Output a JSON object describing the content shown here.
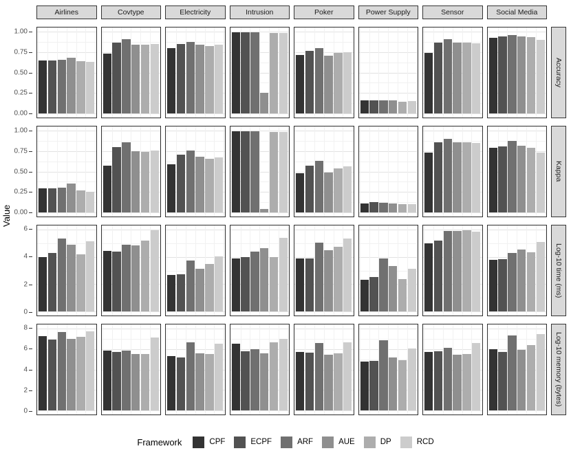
{
  "axes": {
    "y_title": "Value"
  },
  "legend": {
    "title": "Framework"
  },
  "colors": {
    "bar_greys": [
      "#333333",
      "#525252",
      "#707070",
      "#8F8F8F",
      "#ADADAD",
      "#CCCCCC"
    ],
    "strip_background": "#d9d9d9",
    "panel_border": "#2e2e2e",
    "grid_major": "#e2e2e2",
    "grid_minor": "#f1f1f1",
    "tick_text": "#4d4d4d"
  },
  "chart_data": {
    "type": "bar",
    "title": "",
    "xlabel": "",
    "ylabel": "Value",
    "legend_title": "Framework",
    "legend_position": "bottom",
    "grid": "on",
    "series_names": [
      "CPF",
      "ECPF",
      "ARF",
      "AUE",
      "DP",
      "RCD"
    ],
    "facet_columns": [
      "Airlines",
      "Covtype",
      "Electricity",
      "Intrusion",
      "Poker",
      "Power Supply",
      "Sensor",
      "Social Media"
    ],
    "facet_rows": [
      {
        "label": "Accuracy",
        "ticks": [
          1.0,
          0.75,
          0.5,
          0.25,
          0.0
        ],
        "tick_labels": [
          "1.00",
          "0.75",
          "0.50",
          "0.25",
          "0.00"
        ],
        "minor_ticks": [
          0.875,
          0.625,
          0.375,
          0.125
        ],
        "ylim": [
          0,
          1.0
        ],
        "domain": [
          -0.055,
          1.055
        ],
        "values": [
          [
            0.65,
            0.65,
            0.655,
            0.68,
            0.64,
            0.63
          ],
          [
            0.73,
            0.87,
            0.91,
            0.84,
            0.84,
            0.85
          ],
          [
            0.8,
            0.855,
            0.88,
            0.845,
            0.83,
            0.84
          ],
          [
            1.0,
            1.0,
            1.0,
            0.25,
            0.99,
            0.99
          ],
          [
            0.715,
            0.765,
            0.8,
            0.71,
            0.74,
            0.75
          ],
          [
            0.16,
            0.16,
            0.155,
            0.155,
            0.14,
            0.145
          ],
          [
            0.74,
            0.87,
            0.91,
            0.865,
            0.87,
            0.86
          ],
          [
            0.93,
            0.945,
            0.965,
            0.945,
            0.935,
            0.905
          ]
        ]
      },
      {
        "label": "Kappa",
        "ticks": [
          1.0,
          0.75,
          0.5,
          0.25,
          0.0
        ],
        "tick_labels": [
          "1.00",
          "0.75",
          "0.50",
          "0.25",
          "0.00"
        ],
        "minor_ticks": [
          0.875,
          0.625,
          0.375,
          0.125
        ],
        "ylim": [
          0,
          1.0
        ],
        "domain": [
          -0.055,
          1.055
        ],
        "values": [
          [
            0.29,
            0.29,
            0.3,
            0.35,
            0.27,
            0.25
          ],
          [
            0.57,
            0.8,
            0.86,
            0.75,
            0.74,
            0.755
          ],
          [
            0.59,
            0.71,
            0.755,
            0.68,
            0.66,
            0.675
          ],
          [
            1.0,
            1.0,
            1.0,
            0.04,
            0.99,
            0.99
          ],
          [
            0.48,
            0.57,
            0.63,
            0.49,
            0.54,
            0.56
          ],
          [
            0.11,
            0.12,
            0.115,
            0.11,
            0.1,
            0.1
          ],
          [
            0.73,
            0.86,
            0.9,
            0.86,
            0.86,
            0.85
          ],
          [
            0.79,
            0.81,
            0.88,
            0.82,
            0.79,
            0.73
          ]
        ]
      },
      {
        "label": "Log-10 time (ms)",
        "ticks": [
          6,
          4,
          2,
          0
        ],
        "tick_labels": [
          "6",
          "4",
          "2",
          "0"
        ],
        "minor_ticks": [
          5,
          3,
          1
        ],
        "ylim": [
          0,
          6
        ],
        "domain": [
          -0.32,
          6.32
        ],
        "values": [
          [
            4.0,
            4.3,
            5.35,
            4.9,
            4.2,
            5.15
          ],
          [
            4.45,
            4.4,
            4.9,
            4.85,
            5.2,
            5.95
          ],
          [
            2.65,
            2.7,
            3.75,
            3.15,
            3.5,
            4.05
          ],
          [
            3.9,
            4.0,
            4.4,
            4.65,
            4.0,
            5.4
          ],
          [
            3.9,
            3.9,
            5.05,
            4.5,
            4.75,
            5.35
          ],
          [
            2.3,
            2.5,
            3.9,
            3.35,
            2.35,
            3.15
          ],
          [
            5.0,
            5.2,
            5.9,
            5.9,
            5.95,
            5.85
          ],
          [
            3.8,
            3.85,
            4.3,
            4.55,
            4.35,
            5.1
          ]
        ]
      },
      {
        "label": "Log-10 memory (bytes)",
        "ticks": [
          8,
          6,
          4,
          2,
          0
        ],
        "tick_labels": [
          "8",
          "6",
          "4",
          "2",
          "0"
        ],
        "minor_ticks": [
          7,
          5,
          3,
          1
        ],
        "ylim": [
          0,
          8
        ],
        "domain": [
          -0.42,
          8.42
        ],
        "values": [
          [
            7.3,
            6.95,
            7.7,
            7.0,
            7.2,
            7.75
          ],
          [
            5.85,
            5.7,
            5.85,
            5.55,
            5.5,
            7.15
          ],
          [
            5.35,
            5.2,
            6.7,
            5.6,
            5.55,
            6.5
          ],
          [
            6.5,
            5.8,
            6.0,
            5.6,
            6.65,
            7.0
          ],
          [
            5.75,
            5.65,
            6.6,
            5.45,
            5.6,
            6.65
          ],
          [
            4.8,
            4.85,
            6.85,
            5.2,
            4.9,
            6.05
          ],
          [
            5.75,
            5.8,
            6.1,
            5.45,
            5.5,
            6.6
          ],
          [
            6.0,
            5.75,
            7.35,
            5.95,
            6.4,
            7.5
          ]
        ]
      }
    ]
  }
}
